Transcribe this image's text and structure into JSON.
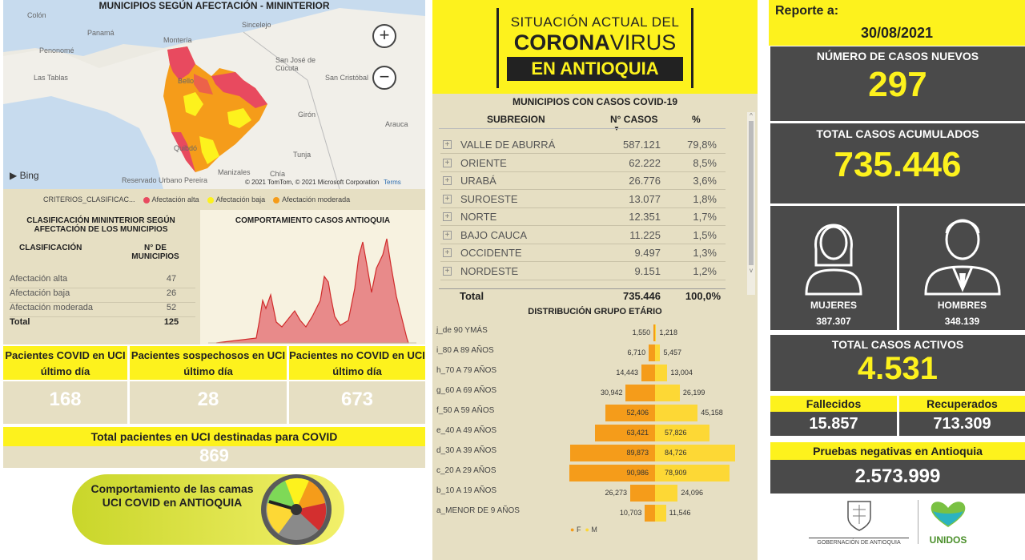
{
  "map": {
    "title": "MUNICIPIOS SEGÚN AFECTACIÓN - MININTERIOR",
    "places": [
      "Colón",
      "Panamá",
      "Penonomé",
      "Las Tablas",
      "Montería",
      "Sincelejo",
      "San José de Cúcuta",
      "San Cristóbal",
      "Arauca",
      "Bello",
      "Girón",
      "Quibdó",
      "Tunja",
      "Manizales",
      "Chía",
      "Reservado Urbano Pereira"
    ],
    "attribution": "© 2021 TomTom, © 2021 Microsoft Corporation",
    "terms": "Terms",
    "bing": "Bing",
    "zoom_in": "+",
    "zoom_out": "−",
    "legend_title": "CRITERIOS_CLASIFICAC...",
    "legend": [
      {
        "label": "Afectación alta",
        "color": "#e84a5f"
      },
      {
        "label": "Afectación baja",
        "color": "#fdf21d"
      },
      {
        "label": "Afectación moderada",
        "color": "#f59c1a"
      }
    ]
  },
  "classification": {
    "title": "CLASIFICACIÓN MININTERIOR SEGÚN AFECTACIÓN DE LOS MUNICIPIOS",
    "col1": "CLASIFICACIÓN",
    "col2": "N° DE MUNICIPIOS",
    "rows": [
      {
        "label": "Afectación alta",
        "value": "47"
      },
      {
        "label": "Afectación baja",
        "value": "26"
      },
      {
        "label": "Afectación moderada",
        "value": "52"
      }
    ],
    "total_label": "Total",
    "total_value": "125"
  },
  "trend": {
    "title": "COMPORTAMIENTO CASOS ANTIOQUIA"
  },
  "uci": {
    "covid_label": "Pacientes COVID en UCI último día",
    "covid_value": "168",
    "sospechosos_label": "Pacientes sospechosos en UCI último día",
    "sospechosos_value": "28",
    "nocovid_label": "Pacientes no COVID en UCI último día",
    "nocovid_value": "673",
    "total_label": "Total pacientes en UCI destinadas para COVID",
    "total_value": "869",
    "beds_button": "Comportamiento de las camas UCI COVID en ANTIOQUIA"
  },
  "header": {
    "line1": "SITUACIÓN ACTUAL DEL",
    "line2a": "CORONA",
    "line2b": "VIRUS",
    "line3": "EN ANTIOQUIA"
  },
  "municipios": {
    "title": "MUNICIPIOS CON CASOS COVID-19",
    "col_sub": "SUBREGION",
    "col_casos": "N° CASOS",
    "col_pct": "%",
    "rows": [
      {
        "name": "VALLE DE ABURRÁ",
        "casos": "587.121",
        "pct": "79,8%"
      },
      {
        "name": "ORIENTE",
        "casos": "62.222",
        "pct": "8,5%"
      },
      {
        "name": "URABÁ",
        "casos": "26.776",
        "pct": "3,6%"
      },
      {
        "name": "SUROESTE",
        "casos": "13.077",
        "pct": "1,8%"
      },
      {
        "name": "NORTE",
        "casos": "12.351",
        "pct": "1,7%"
      },
      {
        "name": "BAJO CAUCA",
        "casos": "11.225",
        "pct": "1,5%"
      },
      {
        "name": "OCCIDENTE",
        "casos": "9.497",
        "pct": "1,3%"
      },
      {
        "name": "NORDESTE",
        "casos": "9.151",
        "pct": "1,2%"
      }
    ],
    "total_label": "Total",
    "total_casos": "735.446",
    "total_pct": "100,0%"
  },
  "age": {
    "title": "DISTRIBUCIÓN GRUPO ETÁRIO",
    "legend_f": "F",
    "legend_m": "M",
    "color_f": "#f59c1a",
    "color_m": "#fdd835",
    "rows": [
      {
        "label": "j_de 90 YMÁS",
        "f": 1550,
        "m": 1218,
        "f_txt": "1,550",
        "m_txt": "1,218"
      },
      {
        "label": "i_80 A 89 AÑOS",
        "f": 6710,
        "m": 5457,
        "f_txt": "6,710",
        "m_txt": "5,457"
      },
      {
        "label": "h_70 A 79 AÑOS",
        "f": 14443,
        "m": 13004,
        "f_txt": "14,443",
        "m_txt": "13,004"
      },
      {
        "label": "g_60 A 69 AÑOS",
        "f": 30942,
        "m": 26199,
        "f_txt": "30,942",
        "m_txt": "26,199"
      },
      {
        "label": "f_50 A 59 AÑOS",
        "f": 52406,
        "m": 45158,
        "f_txt": "52,406",
        "m_txt": "45,158"
      },
      {
        "label": "e_40 A 49 AÑOS",
        "f": 63421,
        "m": 57826,
        "f_txt": "63,421",
        "m_txt": "57,826"
      },
      {
        "label": "d_30 A 39 AÑOS",
        "f": 89873,
        "m": 84726,
        "f_txt": "89,873",
        "m_txt": "84,726"
      },
      {
        "label": "c_20 A 29 AÑOS",
        "f": 90986,
        "m": 78909,
        "f_txt": "90,986",
        "m_txt": "78,909"
      },
      {
        "label": "b_10 A 19 AÑOS",
        "f": 26273,
        "m": 24096,
        "f_txt": "26,273",
        "m_txt": "24,096"
      },
      {
        "label": "a_MENOR DE 9 AÑOS",
        "f": 10703,
        "m": 11546,
        "f_txt": "10,703",
        "m_txt": "11,546"
      }
    ]
  },
  "report": {
    "label": "Reporte a:",
    "date": "30/08/2021",
    "new_label": "NÚMERO DE CASOS NUEVOS",
    "new_value": "297",
    "total_label": "TOTAL CASOS ACUMULADOS",
    "total_value": "735.446",
    "women_label": "MUJERES",
    "women_value": "387.307",
    "men_label": "HOMBRES",
    "men_value": "348.139",
    "active_label": "TOTAL CASOS ACTIVOS",
    "active_value": "4.531",
    "deaths_label": "Fallecidos",
    "deaths_value": "15.857",
    "recovered_label": "Recuperados",
    "recovered_value": "713.309",
    "negative_label": "Pruebas negativas en Antioquia",
    "negative_value": "2.573.999",
    "gov_label": "GOBERNACIÓN DE ANTIOQUIA",
    "unidos_label": "UNIDOS"
  }
}
